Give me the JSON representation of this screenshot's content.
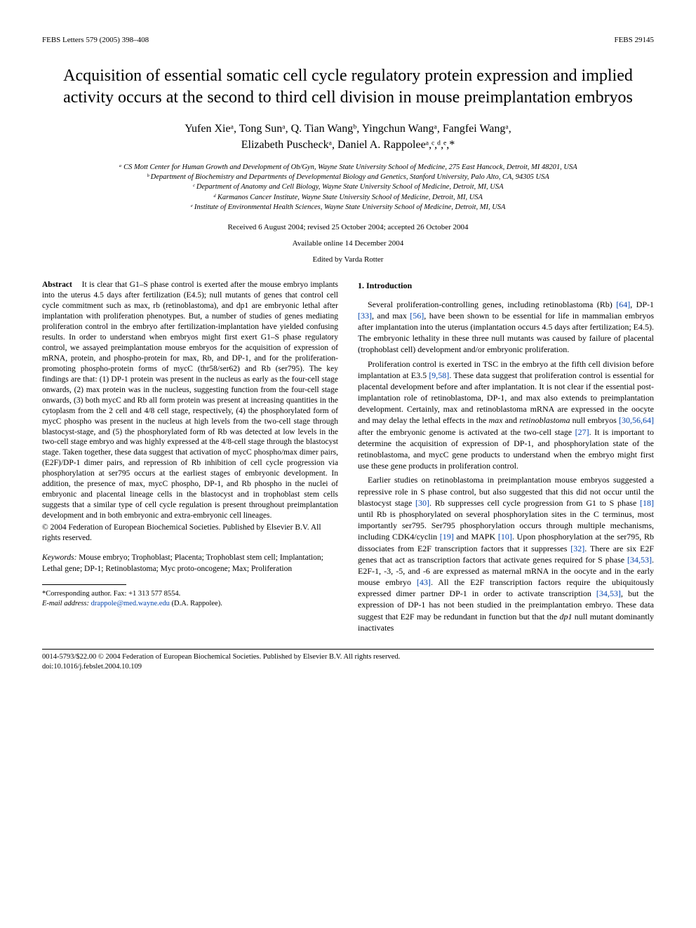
{
  "header": {
    "left": "FEBS Letters 579 (2005) 398–408",
    "right": "FEBS 29145"
  },
  "title": "Acquisition of essential somatic cell cycle regulatory protein expression and implied activity occurs at the second to third cell division in mouse preimplantation embryos",
  "authors_line1": "Yufen Xieᵃ, Tong Sunᵃ, Q. Tian Wangᵇ, Yingchun Wangᵃ, Fangfei Wangᵃ,",
  "authors_line2": "Elizabeth Puscheckᵃ, Daniel A. Rappoleeᵃ,ᶜ,ᵈ,ᵉ,*",
  "affiliations": {
    "a": "ᵃ CS Mott Center for Human Growth and Development of Ob/Gyn, Wayne State University School of Medicine, 275 East Hancock, Detroit, MI 48201, USA",
    "b": "ᵇ Department of Biochemistry and Departments of Developmental Biology and Genetics, Stanford University, Palo Alto, CA, 94305 USA",
    "c": "ᶜ Department of Anatomy and Cell Biology, Wayne State University School of Medicine, Detroit, MI, USA",
    "d": "ᵈ Karmanos Cancer Institute, Wayne State University School of Medicine, Detroit, MI, USA",
    "e": "ᵉ Institute of Environmental Health Sciences, Wayne State University School of Medicine, Detroit, MI, USA"
  },
  "dates": {
    "received": "Received 6 August 2004; revised 25 October 2004; accepted 26 October 2004",
    "available": "Available online 14 December 2004",
    "editor": "Edited by Varda Rotter"
  },
  "abstract": {
    "label": "Abstract",
    "text": "It is clear that G1–S phase control is exerted after the mouse embryo implants into the uterus 4.5 days after fertilization (E4.5); null mutants of genes that control cell cycle commitment such as max, rb (retinoblastoma), and dp1 are embryonic lethal after implantation with proliferation phenotypes. But, a number of studies of genes mediating proliferation control in the embryo after fertilization-implantation have yielded confusing results. In order to understand when embryos might first exert G1–S phase regulatory control, we assayed preimplantation mouse embryos for the acquisition of expression of mRNA, protein, and phospho-protein for max, Rb, and DP-1, and for the proliferation-promoting phospho-protein forms of mycC (thr58/ser62) and Rb (ser795). The key findings are that: (1) DP-1 protein was present in the nucleus as early as the four-cell stage onwards, (2) max protein was in the nucleus, suggesting function from the four-cell stage onwards, (3) both mycC and Rb all form protein was present at increasing quantities in the cytoplasm from the 2 cell and 4/8 cell stage, respectively, (4) the phosphorylated form of mycC phospho was present in the nucleus at high levels from the two-cell stage through blastocyst-stage, and (5) the phosphorylated form of Rb was detected at low levels in the two-cell stage embryo and was highly expressed at the 4/8-cell stage through the blastocyst stage. Taken together, these data suggest that activation of mycC phospho/max dimer pairs, (E2F)/DP-1 dimer pairs, and repression of Rb inhibition of cell cycle progression via phosphorylation at ser795 occurs at the earliest stages of embryonic development. In addition, the presence of max, mycC phospho, DP-1, and Rb phospho in the nuclei of embryonic and placental lineage cells in the blastocyst and in trophoblast stem cells suggests that a similar type of cell cycle regulation is present throughout preimplantation development and in both embryonic and extra-embryonic cell lineages.",
    "copyright": "© 2004 Federation of European Biochemical Societies. Published by Elsevier B.V. All rights reserved."
  },
  "keywords": {
    "label": "Keywords:",
    "text": " Mouse embryo; Trophoblast; Placenta; Trophoblast stem cell; Implantation; Lethal gene; DP-1; Retinoblastoma; Myc proto-oncogene; Max; Proliferation"
  },
  "intro": {
    "heading": "1. Introduction",
    "p1a": "Several proliferation-controlling genes, including retinoblastoma (Rb) ",
    "p1_ref1": "[64]",
    "p1b": ", DP-1 ",
    "p1_ref2": "[33]",
    "p1c": ", and max ",
    "p1_ref3": "[56]",
    "p1d": ", have been shown to be essential for life in mammalian embryos after implantation into the uterus (implantation occurs 4.5 days after fertilization; E4.5). The embryonic lethality in these three null mutants was caused by failure of placental (trophoblast cell) development and/or embryonic proliferation.",
    "p2a": "Proliferation control is exerted in TSC in the embryo at the fifth cell division before implantation at E3.5 ",
    "p2_ref1": "[9,58]",
    "p2b": ". These data suggest that proliferation control is essential for placental development before and after implantation. It is not clear if the essential post-implantation role of retinoblastoma, DP-1, and max also extends to preimplantation development. Certainly, max and retinoblastoma mRNA are expressed in the oocyte and may delay the lethal effects in the ",
    "p2_gene1": "max",
    "p2c": " and ",
    "p2_gene2": "retinoblastoma",
    "p2d": " null embryos ",
    "p2_ref2": "[30,56,64]",
    "p2e": " after the embryonic genome is activated at the two-cell stage ",
    "p2_ref3": "[27]",
    "p2f": ". It is important to determine the acquisition of expression of DP-1, and phosphorylation state of the retinoblastoma, and mycC gene products to understand when the embryo might first use these gene products in proliferation control.",
    "p3a": "Earlier studies on retinoblastoma in preimplantation mouse embryos suggested a repressive role in S phase control, but also suggested that this did not occur until the blastocyst stage ",
    "p3_ref1": "[30]",
    "p3b": ". Rb suppresses cell cycle progression from G1 to S phase ",
    "p3_ref2": "[18]",
    "p3c": " until Rb is phosphorylated on several phosphorylation sites in the C terminus, most importantly ser795. Ser795 phosphorylation occurs through multiple mechanisms, including CDK4/cyclin ",
    "p3_ref3": "[19]",
    "p3d": " and MAPK ",
    "p3_ref4": "[10]",
    "p3e": ". Upon phosphorylation at the ser795, Rb dissociates from E2F transcription factors that it suppresses ",
    "p3_ref5": "[32]",
    "p3f": ". There are six E2F genes that act as transcription factors that activate genes required for S phase ",
    "p3_ref6": "[34,53]",
    "p3g": ". E2F-1, -3, -5, and -6 are expressed as maternal mRNA in the oocyte and in the early mouse embryo ",
    "p3_ref7": "[43]",
    "p3h": ". All the E2F transcription factors require the ubiquitously expressed dimer partner DP-1 in order to activate transcription ",
    "p3_ref8": "[34,53]",
    "p3i": ", but the expression of DP-1 has not been studied in the preimplantation embryo. These data suggest that E2F may be redundant in function but that the ",
    "p3_gene1": "dp1",
    "p3j": " null mutant dominantly inactivates"
  },
  "corresponding": {
    "line1": "*Corresponding author. Fax: +1 313 577 8554.",
    "line2_label": "E-mail address: ",
    "line2_email": "drappole@med.wayne.edu",
    "line2_tail": " (D.A. Rappolee)."
  },
  "footer": {
    "line1": "0014-5793/$22.00 © 2004 Federation of European Biochemical Societies. Published by Elsevier B.V. All rights reserved.",
    "line2": "doi:10.1016/j.febslet.2004.10.109"
  },
  "colors": {
    "link": "#0645ad",
    "text": "#000000",
    "bg": "#ffffff"
  }
}
